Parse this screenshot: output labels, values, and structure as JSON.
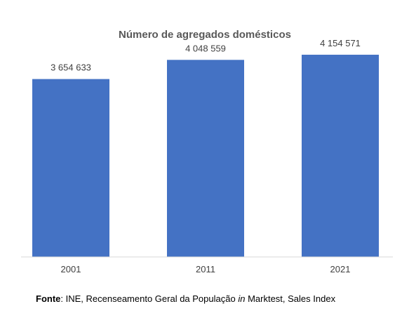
{
  "chart_data": {
    "type": "bar",
    "title": "Número de agregados domésticos",
    "categories": [
      "2001",
      "2011",
      "2021"
    ],
    "values": [
      3654633,
      4048559,
      4154571
    ],
    "value_labels": [
      "3 654 633",
      "4 048 559",
      "4 154 571"
    ],
    "ylim": [
      0,
      4500000
    ],
    "grid": false,
    "legend": "none",
    "bar_color": "#4472C4",
    "axis_color": "#D9D9D9"
  },
  "source": {
    "label": "Fonte",
    "text_before": ": INE, Recenseamento Geral da População ",
    "italic": "in",
    "text_after": " Marktest, Sales Index"
  }
}
